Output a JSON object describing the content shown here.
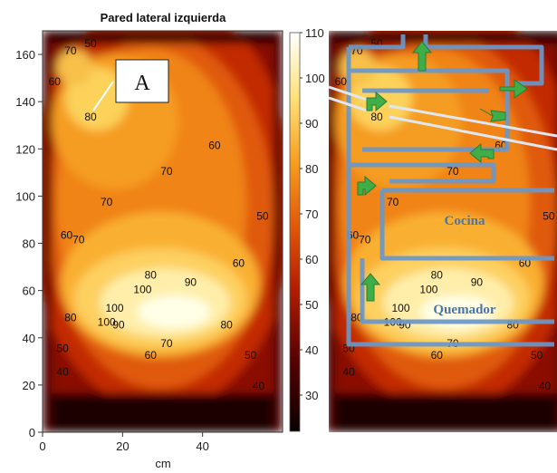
{
  "chart_data": {
    "type": "heatmap",
    "title": "Pared lateral izquierda",
    "xlabel": "cm",
    "ylabel": "",
    "xlim": [
      0,
      60
    ],
    "ylim": [
      0,
      170
    ],
    "x_ticks": [
      "0",
      "20",
      "40"
    ],
    "y_ticks": [
      "0",
      "20",
      "40",
      "60",
      "80",
      "100",
      "120",
      "140",
      "160"
    ],
    "colorbar": {
      "range": [
        22,
        110
      ],
      "ticks": [
        "30",
        "40",
        "50",
        "60",
        "70",
        "80",
        "90",
        "100",
        "110"
      ],
      "colormap": "hot"
    },
    "contour_labels": [
      {
        "text": "50",
        "x": 12,
        "y": 163
      },
      {
        "text": "70",
        "x": 7,
        "y": 160
      },
      {
        "text": "60",
        "x": 3,
        "y": 147
      },
      {
        "text": "80",
        "x": 12,
        "y": 132
      },
      {
        "text": "60",
        "x": 43,
        "y": 120
      },
      {
        "text": "70",
        "x": 31,
        "y": 109
      },
      {
        "text": "70",
        "x": 16,
        "y": 96
      },
      {
        "text": "50",
        "x": 55,
        "y": 90
      },
      {
        "text": "60",
        "x": 6,
        "y": 82
      },
      {
        "text": "70",
        "x": 9,
        "y": 80
      },
      {
        "text": "60",
        "x": 49,
        "y": 70
      },
      {
        "text": "80",
        "x": 27,
        "y": 65
      },
      {
        "text": "90",
        "x": 37,
        "y": 62
      },
      {
        "text": "100",
        "x": 25,
        "y": 59
      },
      {
        "text": "100",
        "x": 18,
        "y": 51
      },
      {
        "text": "90",
        "x": 19,
        "y": 44
      },
      {
        "text": "80",
        "x": 7,
        "y": 47
      },
      {
        "text": "100",
        "x": 16,
        "y": 45
      },
      {
        "text": "80",
        "x": 46,
        "y": 44
      },
      {
        "text": "50",
        "x": 5,
        "y": 34
      },
      {
        "text": "70",
        "x": 31,
        "y": 36
      },
      {
        "text": "60",
        "x": 27,
        "y": 31
      },
      {
        "text": "50",
        "x": 52,
        "y": 31
      },
      {
        "text": "40",
        "x": 5,
        "y": 24
      },
      {
        "text": "40",
        "x": 54,
        "y": 18
      }
    ],
    "annotation": "A",
    "right_panel": {
      "labels": [
        "Cocina",
        "Quemador"
      ]
    }
  },
  "colors": {
    "overlay_outline": "#6b97c9",
    "arrow_fill": "#3fae49",
    "overlay_text": "#4a74a8"
  }
}
